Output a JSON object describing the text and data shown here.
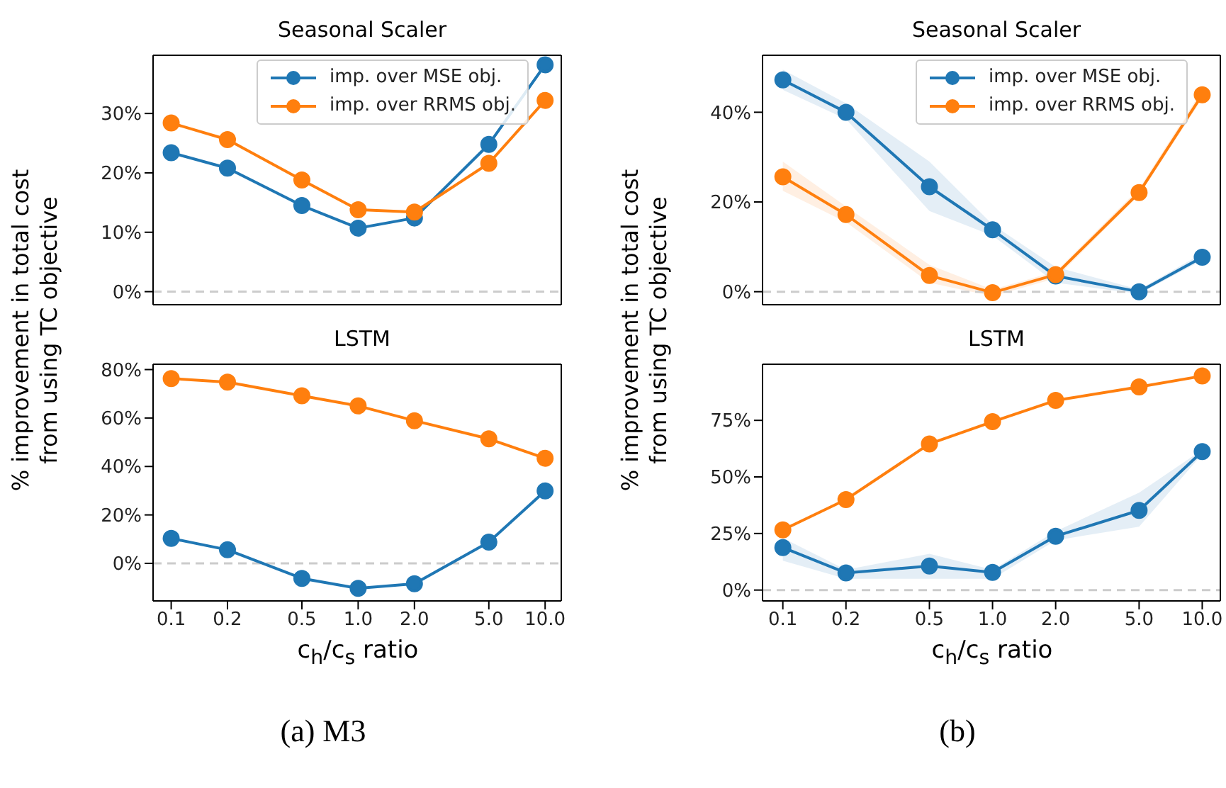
{
  "chart_data": [
    {
      "type": "line",
      "title": "Seasonal Scaler",
      "ylabel": "% improvement in total cost from using TC objective",
      "x": [
        0.1,
        0.2,
        0.5,
        1,
        2,
        5,
        10
      ],
      "log": "x",
      "xlim": [
        0.08,
        12.2
      ],
      "xticks": [
        0.1,
        0.2,
        0.5,
        1,
        2,
        5,
        10
      ],
      "ylim": [
        -2.2,
        39.8
      ],
      "yticks": [
        {
          "value": 0,
          "label": "0%"
        },
        {
          "value": 10,
          "label": "10%"
        },
        {
          "value": 20,
          "label": "20%"
        },
        {
          "value": 30,
          "label": "30%"
        }
      ],
      "tick_labels": "y",
      "grid": false,
      "legend": "top right",
      "marker": "circle",
      "ref_lines": [
        {
          "axis": "y",
          "value": 0,
          "color": "#cccccc",
          "line_style": "dashed"
        }
      ],
      "series": [
        {
          "name": "imp. over MSE obj.",
          "color": "#1f77b4",
          "values": [
            23.4,
            20.8,
            14.5,
            10.7,
            12.4,
            24.8,
            38.2
          ]
        },
        {
          "name": "imp. over RRMS obj.",
          "color": "#ff7f0e",
          "values": [
            28.4,
            25.6,
            18.8,
            13.8,
            13.4,
            21.6,
            32.2
          ]
        }
      ]
    },
    {
      "type": "line",
      "title": "Seasonal Scaler",
      "ylabel": "% improvement in total cost from using TC objective",
      "x": [
        0.1,
        0.2,
        0.5,
        1,
        2,
        5,
        10
      ],
      "log": "x",
      "xlim": [
        0.08,
        12.2
      ],
      "xticks": [
        0.1,
        0.2,
        0.5,
        1,
        2,
        5,
        10
      ],
      "ylim": [
        -2.9,
        52.7
      ],
      "yticks": [
        {
          "value": 0,
          "label": "0%"
        },
        {
          "value": 20,
          "label": "20%"
        },
        {
          "value": 40,
          "label": "40%"
        }
      ],
      "tick_labels": "y",
      "grid": false,
      "legend": "top right",
      "marker": "circle",
      "ref_lines": [
        {
          "axis": "y",
          "value": 0,
          "color": "#cccccc",
          "line_style": "dashed"
        }
      ],
      "series": [
        {
          "name": "imp. over MSE obj.",
          "color": "#1f77b4",
          "values": [
            47.2,
            40,
            23.4,
            13.8,
            3.5,
            0,
            7.7
          ],
          "lower": [
            45,
            38.5,
            18,
            12.5,
            2,
            -0.5,
            7
          ],
          "upper": [
            49.5,
            42,
            29,
            15,
            5.5,
            0.5,
            8.5
          ]
        },
        {
          "name": "imp. over RRMS obj.",
          "color": "#ff7f0e",
          "values": [
            25.6,
            17.2,
            3.6,
            -0.2,
            3.8,
            22.1,
            43.9
          ],
          "lower": [
            22.5,
            15.5,
            2,
            -1,
            3,
            21.5,
            43
          ],
          "upper": [
            29,
            19,
            6,
            0.5,
            4.5,
            23,
            45
          ]
        }
      ]
    },
    {
      "type": "line",
      "title": "LSTM",
      "xlabel": "c$_{h}$/c$_{s}$ ratio",
      "annotations": [
        "(a) M3"
      ],
      "x": [
        0.1,
        0.2,
        0.5,
        1,
        2,
        5,
        10
      ],
      "log": "x",
      "xlim": [
        0.08,
        12.2
      ],
      "xticks": [
        0.1,
        0.2,
        0.5,
        {
          "value": 1,
          "label": "1.0"
        },
        {
          "value": 2,
          "label": "2.0"
        },
        {
          "value": 5,
          "label": "5.0"
        },
        {
          "value": 10,
          "label": "10.0"
        }
      ],
      "ylim": [
        -15.5,
        82.2
      ],
      "yticks": [
        {
          "value": 0,
          "label": "0%"
        },
        {
          "value": 20,
          "label": "20%"
        },
        {
          "value": 40,
          "label": "40%"
        },
        {
          "value": 60,
          "label": "60%"
        },
        {
          "value": 80,
          "label": "80%"
        }
      ],
      "grid": false,
      "legend": false,
      "marker": "circle",
      "ref_lines": [
        {
          "axis": "y",
          "value": 0,
          "color": "#cccccc",
          "line_style": "dashed"
        }
      ],
      "series": [
        {
          "color": "#1f77b4",
          "values": [
            10.3,
            5.6,
            -6.2,
            -10.3,
            -8.4,
            8.8,
            29.9
          ]
        },
        {
          "color": "#ff7f0e",
          "values": [
            76.3,
            74.8,
            69.2,
            65,
            58.9,
            51.4,
            43.4
          ]
        }
      ]
    },
    {
      "type": "line",
      "title": "LSTM",
      "xlabel": "c$_{h}$/c$_{s}$ ratio",
      "annotations": [
        "(b)"
      ],
      "x": [
        0.1,
        0.2,
        0.5,
        1,
        2,
        5,
        10
      ],
      "log": "x",
      "xlim": [
        0.08,
        12.2
      ],
      "xticks": [
        0.1,
        0.2,
        0.5,
        {
          "value": 1,
          "label": "1.0"
        },
        {
          "value": 2,
          "label": "2.0"
        },
        {
          "value": 5,
          "label": "5.0"
        },
        {
          "value": 10,
          "label": "10.0"
        }
      ],
      "ylim": [
        -4.8,
        99.8
      ],
      "yticks": [
        {
          "value": 0,
          "label": "0%"
        },
        {
          "value": 25,
          "label": "25%"
        },
        {
          "value": 50,
          "label": "50%"
        },
        {
          "value": 75,
          "label": "75%"
        }
      ],
      "grid": false,
      "legend": false,
      "marker": "circle",
      "ref_lines": [
        {
          "axis": "y",
          "value": 0,
          "color": "#cccccc",
          "line_style": "dashed"
        }
      ],
      "series": [
        {
          "color": "#1f77b4",
          "values": [
            18.8,
            7.6,
            10.6,
            7.8,
            23.8,
            35.2,
            61.2
          ],
          "lower": [
            13,
            5,
            5,
            5,
            22,
            28,
            60
          ],
          "upper": [
            23,
            9,
            16,
            9,
            26,
            43,
            62
          ]
        },
        {
          "color": "#ff7f0e",
          "values": [
            26.6,
            40,
            64.6,
            74.4,
            83.8,
            89.8,
            94.6
          ]
        }
      ]
    }
  ]
}
